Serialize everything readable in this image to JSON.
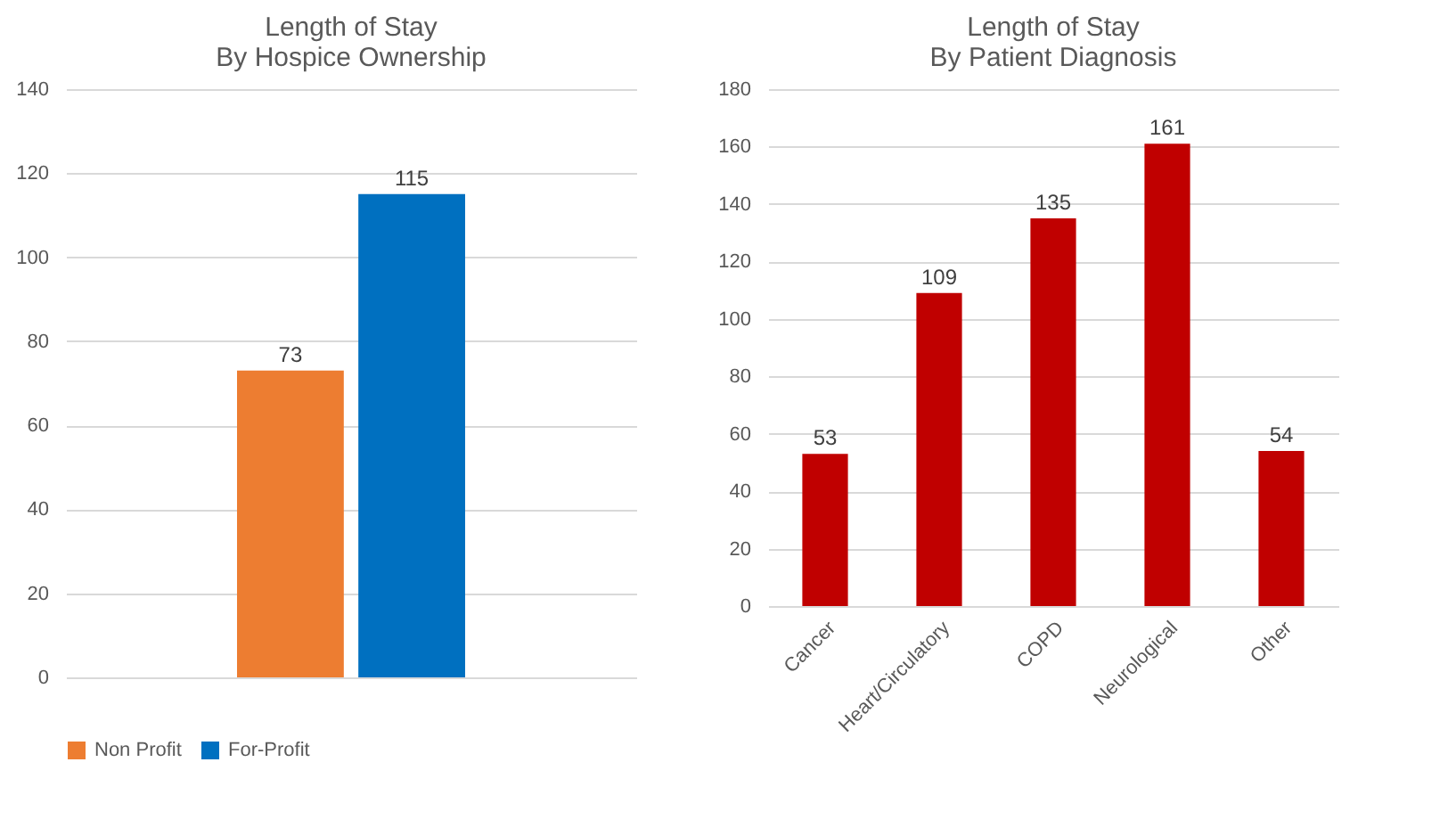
{
  "chart_data": [
    {
      "type": "bar",
      "title": "Length of Stay\nBy Hospice Ownership",
      "categories": [
        null
      ],
      "series": [
        {
          "name": "Non Profit",
          "color": "#ed7d31",
          "values": [
            73
          ]
        },
        {
          "name": "For-Profit",
          "color": "#0070c0",
          "values": [
            115
          ]
        }
      ],
      "ylim": [
        0,
        140
      ],
      "yticks": [
        0,
        20,
        40,
        60,
        80,
        100,
        120,
        140
      ],
      "grid": "y",
      "legend": "bottom",
      "data_labels": true
    },
    {
      "type": "bar",
      "title": "Length of Stay\nBy Patient Diagnosis",
      "categories": [
        "Cancer",
        "Heart/Circulatory",
        "COPD",
        "Neurological",
        "Other"
      ],
      "series": [
        {
          "color": "#c00000",
          "values": [
            53,
            109,
            135,
            161,
            54
          ]
        }
      ],
      "ylim": [
        0,
        180
      ],
      "yticks": [
        0,
        20,
        40,
        60,
        80,
        100,
        120,
        140,
        160,
        180
      ],
      "grid": "y",
      "data_labels": true
    }
  ]
}
